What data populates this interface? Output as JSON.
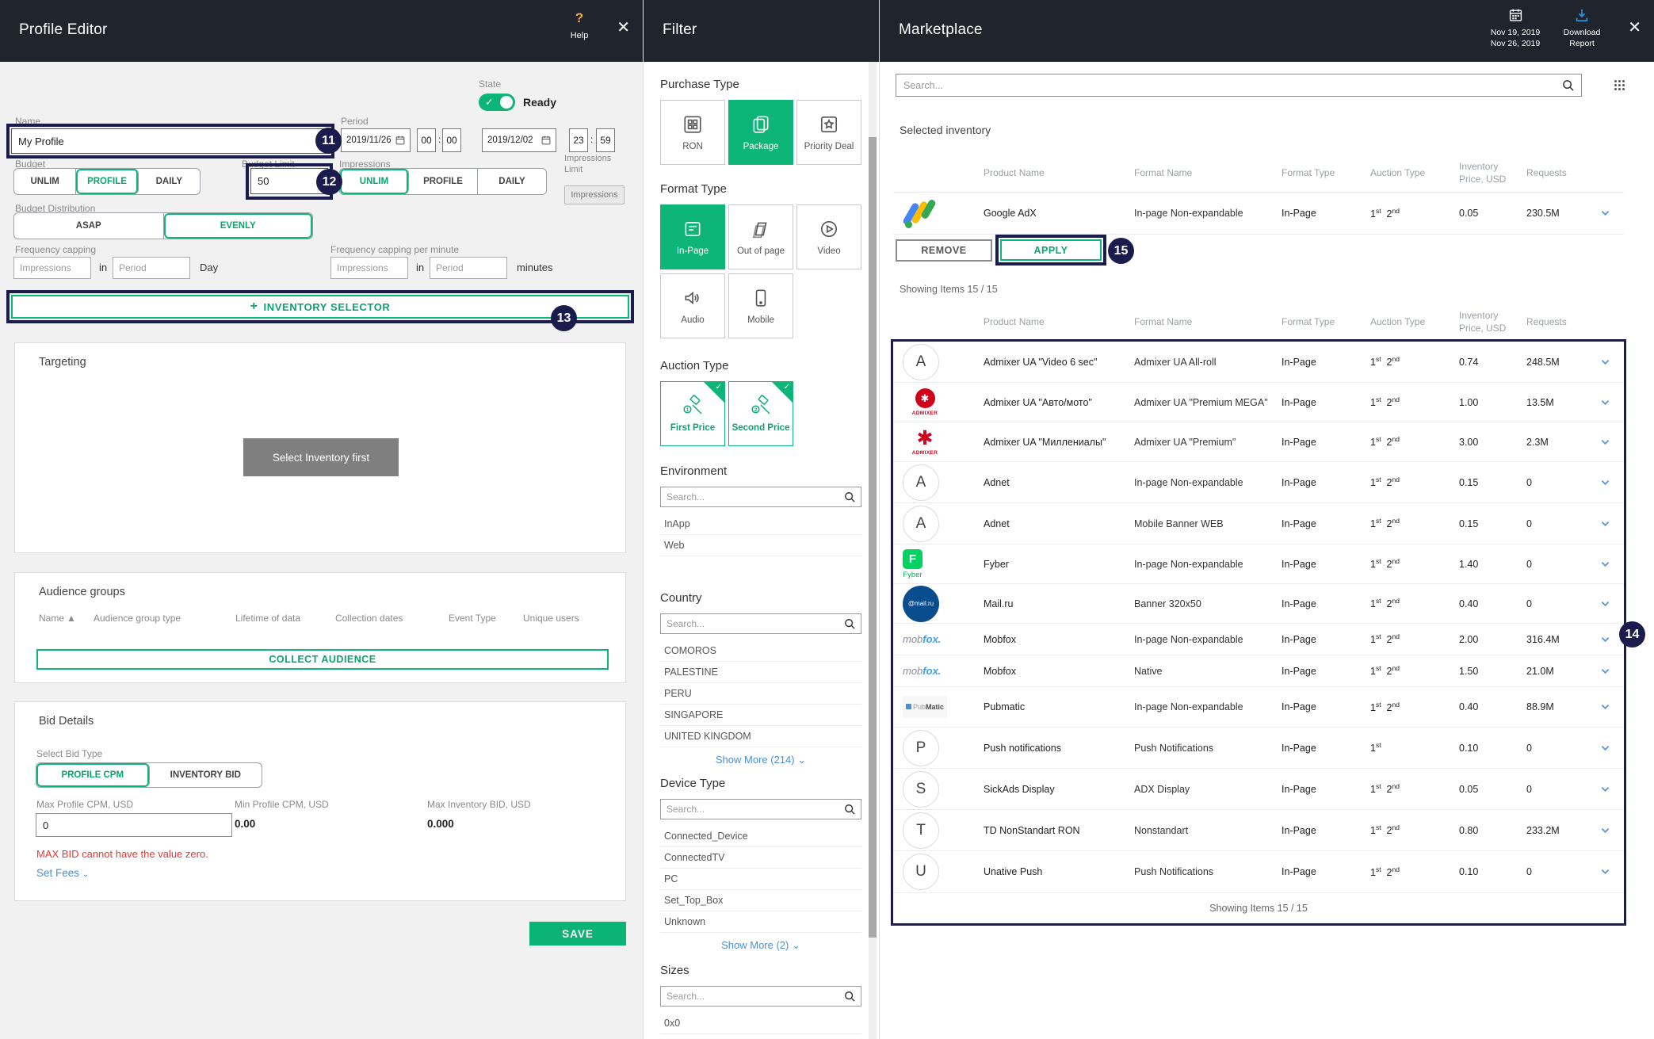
{
  "colors": {
    "accent_green": "#0db578",
    "header_dark": "#20242c",
    "annotation_navy": "#1b1b4e",
    "link_blue": "#4a90d2",
    "error_red": "#e53935"
  },
  "profile_editor": {
    "title": "Profile Editor",
    "help_label": "Help",
    "state": {
      "label": "State",
      "value": "Ready"
    },
    "name": {
      "label": "Name",
      "value": "My Profile"
    },
    "period": {
      "label": "Period",
      "start_date": "2019/11/26",
      "start_hour": "00",
      "start_min": "00",
      "end_date": "2019/12/02",
      "end_hour": "23",
      "end_min": "59"
    },
    "budget": {
      "label": "Budget",
      "options": [
        "UNLIM",
        "PROFILE",
        "DAILY"
      ],
      "selected": "PROFILE"
    },
    "budget_limit": {
      "label": "Budget Limit",
      "value": "50"
    },
    "impressions": {
      "label": "Impressions",
      "options": [
        "UNLIM",
        "PROFILE",
        "DAILY"
      ],
      "selected": "UNLIM"
    },
    "impressions_limit": {
      "label": "Impressions Limit",
      "chip": "Impressions"
    },
    "budget_distribution": {
      "label": "Budget Distribution",
      "options": [
        "ASAP",
        "EVENLY"
      ],
      "selected": "EVENLY"
    },
    "frequency_capping": {
      "label": "Frequency capping",
      "impressions_placeholder": "Impressions",
      "in_label": "in",
      "period_placeholder": "Period",
      "unit": "Day"
    },
    "frequency_capping_minute": {
      "label": "Frequency capping per minute",
      "impressions_placeholder": "Impressions",
      "in_label": "in",
      "period_placeholder": "Period",
      "unit": "minutes"
    },
    "inventory_selector_label": "INVENTORY SELECTOR",
    "targeting": {
      "title": "Targeting",
      "empty_button": "Select Inventory first"
    },
    "audience": {
      "title": "Audience groups",
      "columns": [
        "Name",
        "Audience group type",
        "Lifetime of data",
        "Collection dates",
        "Event Type",
        "Unique users"
      ],
      "collect_button": "COLLECT AUDIENCE"
    },
    "bid": {
      "title": "Bid Details",
      "select_label": "Select Bid Type",
      "options": [
        "PROFILE CPM",
        "INVENTORY BID"
      ],
      "selected": "PROFILE CPM",
      "max_cpm_label": "Max Profile CPM, USD",
      "max_cpm_value": "0",
      "min_cpm_label": "Min Profile CPM, USD",
      "min_cpm_value": "0.00",
      "max_bid_label": "Max Inventory BID, USD",
      "max_bid_value": "0.000",
      "error": "MAX BID cannot have the value zero.",
      "set_fees": "Set Fees"
    },
    "save_button": "SAVE"
  },
  "filter": {
    "title": "Filter",
    "purchase_type": {
      "label": "Purchase Type",
      "options": [
        {
          "name": "RON",
          "icon": "ron",
          "selected": false
        },
        {
          "name": "Package",
          "icon": "package",
          "selected": true
        },
        {
          "name": "Priority Deal",
          "icon": "priority",
          "selected": false
        }
      ]
    },
    "format_type": {
      "label": "Format Type",
      "options": [
        {
          "name": "In-Page",
          "icon": "inpage",
          "selected": true
        },
        {
          "name": "Out of page",
          "icon": "outpage",
          "selected": false
        },
        {
          "name": "Video",
          "icon": "video",
          "selected": false
        },
        {
          "name": "Audio",
          "icon": "audio",
          "selected": false
        },
        {
          "name": "Mobile",
          "icon": "mobile",
          "selected": false
        }
      ]
    },
    "auction_type": {
      "label": "Auction Type",
      "options": [
        {
          "name": "First Price",
          "icon": "gavel1",
          "checked": true
        },
        {
          "name": "Second Price",
          "icon": "gavel2",
          "checked": true
        }
      ]
    },
    "environment": {
      "label": "Environment",
      "search_placeholder": "Search...",
      "items": [
        "InApp",
        "Web"
      ]
    },
    "country": {
      "label": "Country",
      "search_placeholder": "Search...",
      "items": [
        "COMOROS",
        "PALESTINE",
        "PERU",
        "SINGAPORE",
        "UNITED KINGDOM"
      ],
      "show_more": "Show More (214)"
    },
    "device_type": {
      "label": "Device Type",
      "search_placeholder": "Search...",
      "items": [
        "Connected_Device",
        "ConnectedTV",
        "PC",
        "Set_Top_Box",
        "Unknown"
      ],
      "show_more": "Show More (2)"
    },
    "sizes": {
      "label": "Sizes",
      "search_placeholder": "Search...",
      "items": [
        "0x0"
      ]
    }
  },
  "marketplace": {
    "title": "Marketplace",
    "date_range": [
      "Nov 19, 2019",
      "Nov 26, 2019"
    ],
    "download_label": [
      "Download",
      "Report"
    ],
    "search_placeholder": "Search...",
    "columns": [
      {
        "lines": [
          "Product Name"
        ]
      },
      {
        "lines": [
          "Format Name"
        ]
      },
      {
        "lines": [
          "Format Type"
        ]
      },
      {
        "lines": [
          "Auction Type"
        ]
      },
      {
        "lines": [
          "Inventory",
          "Price, USD"
        ]
      },
      {
        "lines": [
          "Requests"
        ]
      }
    ],
    "selected_inventory": {
      "label": "Selected inventory",
      "rows": [
        {
          "logo": "googleadx",
          "product": "Google AdX",
          "format_name": "In-page Non-expandable",
          "format_type": "In-Page",
          "auction": "1st 2nd",
          "price": "0.05",
          "requests": "230.5M"
        }
      ],
      "remove_button": "REMOVE",
      "apply_button": "APPLY"
    },
    "showing_top": "Showing Items 15 / 15",
    "table": {
      "rows": [
        {
          "logo": "letter:A",
          "product": "Admixer UA \"Video 6 sec\"",
          "format_name": "Admixer UA All-roll",
          "format_type": "In-Page",
          "auction": "1st 2nd",
          "price": "0.74",
          "requests": "248.5M"
        },
        {
          "logo": "admixer-circle",
          "product": "Admixer UA \"Авто/мото\"",
          "format_name": "Admixer UA \"Premium MEGA\"",
          "format_type": "In-Page",
          "auction": "1st 2nd",
          "price": "1.00",
          "requests": "13.5M"
        },
        {
          "logo": "admixer-star",
          "product": "Admixer UA \"Миллениалы\"",
          "format_name": "Admixer UA \"Premium\"",
          "format_type": "In-Page",
          "auction": "1st 2nd",
          "price": "3.00",
          "requests": "2.3M"
        },
        {
          "logo": "letter:A",
          "product": "Adnet",
          "format_name": "In-page Non-expandable",
          "format_type": "In-Page",
          "auction": "1st 2nd",
          "price": "0.15",
          "requests": "0"
        },
        {
          "logo": "letter:A",
          "product": "Adnet",
          "format_name": "Mobile Banner WEB",
          "format_type": "In-Page",
          "auction": "1st 2nd",
          "price": "0.15",
          "requests": "0"
        },
        {
          "logo": "fyber",
          "product": "Fyber",
          "format_name": "In-page Non-expandable",
          "format_type": "In-Page",
          "auction": "1st 2nd",
          "price": "1.40",
          "requests": "0"
        },
        {
          "logo": "mailru",
          "product": "Mail.ru",
          "format_name": "Banner 320x50",
          "format_type": "In-Page",
          "auction": "1st 2nd",
          "price": "0.40",
          "requests": "0"
        },
        {
          "logo": "mobfox",
          "product": "Mobfox",
          "format_name": "In-page Non-expandable",
          "format_type": "In-Page",
          "auction": "1st 2nd",
          "price": "2.00",
          "requests": "316.4M"
        },
        {
          "logo": "mobfox",
          "product": "Mobfox",
          "format_name": "Native",
          "format_type": "In-Page",
          "auction": "1st 2nd",
          "price": "1.50",
          "requests": "21.0M"
        },
        {
          "logo": "pubmatic",
          "product": "Pubmatic",
          "format_name": "In-page Non-expandable",
          "format_type": "In-Page",
          "auction": "1st 2nd",
          "price": "0.40",
          "requests": "88.9M"
        },
        {
          "logo": "letter:P",
          "product": "Push notifications",
          "format_name": "Push Notifications",
          "format_type": "In-Page",
          "auction": "1st",
          "price": "0.10",
          "requests": "0"
        },
        {
          "logo": "letter:S",
          "product": "SickAds Display",
          "format_name": "ADX Display",
          "format_type": "In-Page",
          "auction": "1st 2nd",
          "price": "0.05",
          "requests": "0"
        },
        {
          "logo": "letter:T",
          "product": "TD NonStandart RON",
          "format_name": "Nonstandart",
          "format_type": "In-Page",
          "auction": "1st 2nd",
          "price": "0.80",
          "requests": "233.2M"
        },
        {
          "logo": "letter:U",
          "product": "Unative Push",
          "format_name": "Push Notifications",
          "format_type": "In-Page",
          "auction": "1st 2nd",
          "price": "0.10",
          "requests": "0"
        }
      ],
      "footer": "Showing Items 15 / 15"
    }
  },
  "annotations": {
    "badge_11": "11",
    "badge_12": "12",
    "badge_13": "13",
    "badge_14": "14",
    "badge_15": "15"
  }
}
